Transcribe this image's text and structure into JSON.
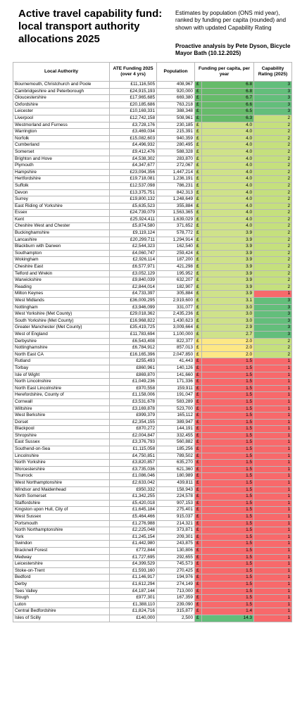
{
  "header": {
    "title": "Active travel capability fund: local transport authority allocations 2025",
    "subtitle": "Estimates by population (ONS mid year), ranked by funding per capita (rounded) and shown with updated Capability Rating",
    "analysis": "Proactive analysis by Pete Dyson, Bicycle Mayor Bath (10.12.2025)"
  },
  "table": {
    "columns": [
      "Local Authority",
      "ATE Funding 2025 (over 4 yrs)",
      "Population",
      "Funding per capita, per year",
      "Capability Rating (2025)"
    ],
    "currency_symbol": "£",
    "rows": [
      [
        "Bournemouth, Christchurch and Poole",
        "£11,116,505",
        "408,967",
        "6.8",
        "3"
      ],
      [
        "Cambridgeshire and Peterborough",
        "£24,915,193",
        "920,000",
        "6.8",
        "3"
      ],
      [
        "Gloucestershire",
        "£17,965,685",
        "669,380",
        "6.7",
        "3"
      ],
      [
        "Oxfordshire",
        "£20,185,686",
        "763,218",
        "6.6",
        "3"
      ],
      [
        "Leicester",
        "£10,169,331",
        "388,348",
        "6.5",
        "3"
      ],
      [
        "Liverpool",
        "£12,742,158",
        "508,961",
        "6.3",
        "2"
      ],
      [
        "Westmorland and Furness",
        "£3,728,176",
        "230,185",
        "4.0",
        "2"
      ],
      [
        "Warrington",
        "£3,469,034",
        "215,391",
        "4.0",
        "2"
      ],
      [
        "Norfolk",
        "£15,082,603",
        "940,359",
        "4.0",
        "2"
      ],
      [
        "Cumberland",
        "£4,496,932",
        "280,495",
        "4.0",
        "2"
      ],
      [
        "Somerset",
        "£9,412,476",
        "588,328",
        "4.0",
        "2"
      ],
      [
        "Brighton and Hove",
        "£4,538,302",
        "283,870",
        "4.0",
        "2"
      ],
      [
        "Plymouth",
        "£4,347,677",
        "272,067",
        "4.0",
        "2"
      ],
      [
        "Hampshire",
        "£23,094,356",
        "1,447,214",
        "4.0",
        "2"
      ],
      [
        "Hertfordshire",
        "£19,718,081",
        "1,236,191",
        "4.0",
        "2"
      ],
      [
        "Suffolk",
        "£12,537,098",
        "786,231",
        "4.0",
        "2"
      ],
      [
        "Devon",
        "£13,375,751",
        "842,313",
        "4.0",
        "2"
      ],
      [
        "Surrey",
        "£19,800,132",
        "1,248,649",
        "4.0",
        "2"
      ],
      [
        "East Riding of Yorkshire",
        "£5,635,523",
        "355,884",
        "4.0",
        "2"
      ],
      [
        "Essex",
        "£24,739,079",
        "1,563,365",
        "4.0",
        "2"
      ],
      [
        "Kent",
        "£25,924,411",
        "1,639,029",
        "4.0",
        "2"
      ],
      [
        "Cheshire West and Chester",
        "£5,874,580",
        "371,652",
        "4.0",
        "2"
      ],
      [
        "Buckinghamshire",
        "£9,119,124",
        "578,772",
        "3.9",
        "2"
      ],
      [
        "Lancashire",
        "£20,299,711",
        "1,294,914",
        "3.9",
        "2"
      ],
      [
        "Blackburn with Darwen",
        "£2,544,323",
        "162,540",
        "3.9",
        "2"
      ],
      [
        "Southampton",
        "£4,060,747",
        "259,424",
        "3.9",
        "2"
      ],
      [
        "Wokingham",
        "£2,926,114",
        "187,200",
        "3.9",
        "2"
      ],
      [
        "Cheshire East",
        "£6,577,971",
        "421,298",
        "3.9",
        "2"
      ],
      [
        "Telford and Wrekin",
        "£3,052,129",
        "195,952",
        "3.9",
        "2"
      ],
      [
        "Warwickshire",
        "£9,840,039",
        "632,207",
        "3.9",
        "2"
      ],
      [
        "Reading",
        "£2,844,014",
        "182,907",
        "3.9",
        "2"
      ],
      [
        "Milton Keynes",
        "£4,733,397",
        "305,884",
        "3.9",
        "1"
      ],
      [
        "West Midlands",
        "£36,009,295",
        "2,919,600",
        "3.1",
        "3"
      ],
      [
        "Nottingham",
        "£3,946,099",
        "331,077",
        "3.0",
        "3"
      ],
      [
        "West Yorkshire (Met County)",
        "£29,018,362",
        "2,435,236",
        "3.0",
        "3"
      ],
      [
        "South Yorkshire (Met County)",
        "£16,968,822",
        "1,430,623",
        "3.0",
        "3"
      ],
      [
        "Greater Manchester (Met County)",
        "£35,419,725",
        "3,009,664",
        "2.9",
        "3"
      ],
      [
        "West of England",
        "£11,783,694",
        "1,100,000",
        "2.7",
        "3"
      ],
      [
        "Derbyshire",
        "£6,543,408",
        "822,377",
        "2.0",
        "2"
      ],
      [
        "Nottinghamshire",
        "£6,784,912",
        "857,013",
        "2.0",
        "2"
      ],
      [
        "North East CA",
        "£16,165,396",
        "2,047,850",
        "2.0",
        "2"
      ],
      [
        "Rutland",
        "£255,493",
        "41,443",
        "1.5",
        "1"
      ],
      [
        "Torbay",
        "£860,961",
        "140,126",
        "1.5",
        "1"
      ],
      [
        "Isle of Wight",
        "£869,870",
        "141,660",
        "1.5",
        "1"
      ],
      [
        "North Lincolnshire",
        "£1,049,236",
        "171,336",
        "1.5",
        "1"
      ],
      [
        "North East Lincolnshire",
        "£970,558",
        "159,911",
        "1.5",
        "1"
      ],
      [
        "Herefordshire, County of",
        "£1,158,006",
        "191,047",
        "1.5",
        "1"
      ],
      [
        "Cornwall",
        "£3,531,678",
        "583,289",
        "1.5",
        "1"
      ],
      [
        "Wiltshire",
        "£3,169,878",
        "523,700",
        "1.5",
        "1"
      ],
      [
        "West Berkshire",
        "£999,379",
        "165,112",
        "1.5",
        "1"
      ],
      [
        "Dorset",
        "£2,354,155",
        "389,947",
        "1.5",
        "1"
      ],
      [
        "Blackpool",
        "£870,272",
        "144,191",
        "1.5",
        "1"
      ],
      [
        "Shropshire",
        "£2,004,847",
        "332,455",
        "1.5",
        "1"
      ],
      [
        "East Sussex",
        "£3,376,793",
        "560,882",
        "1.5",
        "1"
      ],
      [
        "Southend-on-Sea",
        "£1,115,058",
        "185,256",
        "1.5",
        "1"
      ],
      [
        "Lincolnshire",
        "£4,750,851",
        "789,502",
        "1.5",
        "1"
      ],
      [
        "North Yorkshire",
        "£3,820,857",
        "635,270",
        "1.5",
        "1"
      ],
      [
        "Worcestershire",
        "£3,735,036",
        "621,360",
        "1.5",
        "1"
      ],
      [
        "Thurrock",
        "£1,086,046",
        "180,989",
        "1.5",
        "1"
      ],
      [
        "West Northamptonshire",
        "£2,633,042",
        "439,811",
        "1.5",
        "1"
      ],
      [
        "Windsor and Maidenhead",
        "£950,332",
        "158,943",
        "1.5",
        "1"
      ],
      [
        "North Somerset",
        "£1,342,255",
        "224,578",
        "1.5",
        "1"
      ],
      [
        "Staffordshire",
        "£5,420,018",
        "907,153",
        "1.5",
        "1"
      ],
      [
        "Kingston upon Hull, City of",
        "£1,645,184",
        "275,401",
        "1.5",
        "1"
      ],
      [
        "West Sussex",
        "£5,464,466",
        "915,037",
        "1.5",
        "1"
      ],
      [
        "Portsmouth",
        "£1,276,988",
        "214,321",
        "1.5",
        "1"
      ],
      [
        "North Northamptonshire",
        "£2,225,048",
        "373,871",
        "1.5",
        "1"
      ],
      [
        "York",
        "£1,245,154",
        "209,301",
        "1.5",
        "1"
      ],
      [
        "Swindon",
        "£1,442,980",
        "243,875",
        "1.5",
        "1"
      ],
      [
        "Bracknell Forest",
        "£772,844",
        "130,806",
        "1.5",
        "1"
      ],
      [
        "Medway",
        "£1,727,695",
        "292,655",
        "1.5",
        "1"
      ],
      [
        "Leicestershire",
        "£4,399,529",
        "745,573",
        "1.5",
        "1"
      ],
      [
        "Stoke-on-Trent",
        "£1,593,160",
        "270,425",
        "1.5",
        "1"
      ],
      [
        "Bedford",
        "£1,146,917",
        "194,976",
        "1.5",
        "1"
      ],
      [
        "Derby",
        "£1,612,294",
        "274,149",
        "1.5",
        "1"
      ],
      [
        "Tees Valley",
        "£4,187,144",
        "713,000",
        "1.5",
        "1"
      ],
      [
        "Slough",
        "£977,301",
        "167,359",
        "1.5",
        "1"
      ],
      [
        "Luton",
        "£1,388,110",
        "239,090",
        "1.5",
        "1"
      ],
      [
        "Central Bedfordshire",
        "£1,824,716",
        "315,877",
        "1.4",
        "1"
      ],
      [
        "Isles of Scilly",
        "£140,000",
        "2,500",
        "14.3",
        "1"
      ]
    ]
  }
}
